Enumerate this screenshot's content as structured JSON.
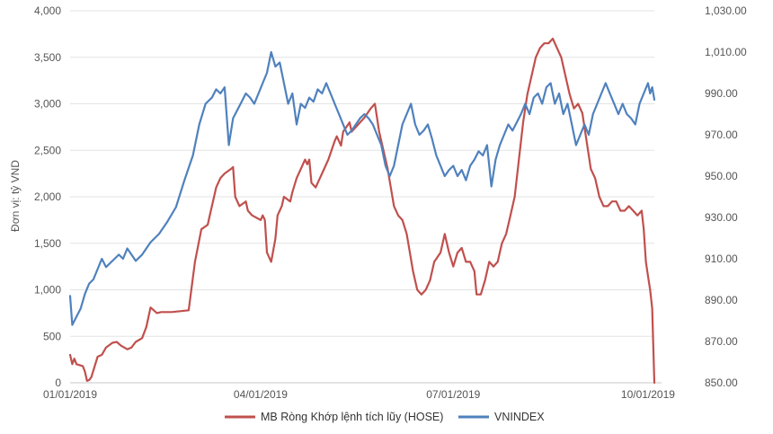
{
  "chart_data": {
    "type": "line",
    "title": "",
    "ylabel": "Đơn vị: tỷ VND",
    "x_ticks": [
      "01/01/2019",
      "04/01/2019",
      "07/01/2019",
      "10/01/2019"
    ],
    "x_range": [
      "2019-01-01",
      "2019-10-04"
    ],
    "y_left": {
      "range": [
        0,
        4000
      ],
      "ticks": [
        0,
        500,
        1000,
        1500,
        2000,
        2500,
        3000,
        3500,
        4000
      ],
      "tick_labels": [
        "0",
        "500",
        "1,000",
        "1,500",
        "2,000",
        "2,500",
        "3,000",
        "3,500",
        "4,000"
      ]
    },
    "y_right": {
      "range": [
        850,
        1030
      ],
      "ticks": [
        850,
        870,
        890,
        910,
        930,
        950,
        970,
        990,
        1010,
        1030
      ],
      "tick_labels": [
        "850.00",
        "870.00",
        "890.00",
        "910.00",
        "930.00",
        "950.00",
        "970.00",
        "990.00",
        "1,010.00",
        "1,030.00"
      ]
    },
    "grid": true,
    "legend_position": "bottom",
    "series": [
      {
        "name": "MB Ròng Khớp lệnh tích lũy (HOSE)",
        "axis": "left",
        "color": "#c0504d",
        "points": [
          [
            "2019-01-01",
            300
          ],
          [
            "2019-01-02",
            200
          ],
          [
            "2019-01-03",
            260
          ],
          [
            "2019-01-04",
            200
          ],
          [
            "2019-01-07",
            180
          ],
          [
            "2019-01-08",
            120
          ],
          [
            "2019-01-09",
            20
          ],
          [
            "2019-01-10",
            30
          ],
          [
            "2019-01-11",
            60
          ],
          [
            "2019-01-14",
            280
          ],
          [
            "2019-01-16",
            300
          ],
          [
            "2019-01-18",
            380
          ],
          [
            "2019-01-21",
            430
          ],
          [
            "2019-01-23",
            440
          ],
          [
            "2019-01-25",
            400
          ],
          [
            "2019-01-28",
            360
          ],
          [
            "2019-01-30",
            380
          ],
          [
            "2019-02-01",
            440
          ],
          [
            "2019-02-04",
            480
          ],
          [
            "2019-02-06",
            600
          ],
          [
            "2019-02-08",
            810
          ],
          [
            "2019-02-11",
            750
          ],
          [
            "2019-02-13",
            760
          ],
          [
            "2019-02-18",
            760
          ],
          [
            "2019-02-22",
            770
          ],
          [
            "2019-02-26",
            780
          ],
          [
            "2019-03-01",
            1300
          ],
          [
            "2019-03-04",
            1650
          ],
          [
            "2019-03-07",
            1700
          ],
          [
            "2019-03-08",
            1800
          ],
          [
            "2019-03-11",
            2100
          ],
          [
            "2019-03-13",
            2200
          ],
          [
            "2019-03-15",
            2250
          ],
          [
            "2019-03-18",
            2300
          ],
          [
            "2019-03-19",
            2320
          ],
          [
            "2019-03-20",
            2000
          ],
          [
            "2019-03-22",
            1900
          ],
          [
            "2019-03-25",
            1950
          ],
          [
            "2019-03-26",
            1850
          ],
          [
            "2019-03-28",
            1800
          ],
          [
            "2019-04-01",
            1750
          ],
          [
            "2019-04-02",
            1800
          ],
          [
            "2019-04-03",
            1750
          ],
          [
            "2019-04-04",
            1400
          ],
          [
            "2019-04-06",
            1300
          ],
          [
            "2019-04-08",
            1550
          ],
          [
            "2019-04-09",
            1800
          ],
          [
            "2019-04-11",
            1900
          ],
          [
            "2019-04-12",
            2000
          ],
          [
            "2019-04-15",
            1950
          ],
          [
            "2019-04-16",
            2050
          ],
          [
            "2019-04-18",
            2200
          ],
          [
            "2019-04-20",
            2300
          ],
          [
            "2019-04-22",
            2400
          ],
          [
            "2019-04-23",
            2350
          ],
          [
            "2019-04-24",
            2400
          ],
          [
            "2019-04-25",
            2150
          ],
          [
            "2019-04-27",
            2100
          ],
          [
            "2019-04-29",
            2200
          ],
          [
            "2019-05-01",
            2300
          ],
          [
            "2019-05-03",
            2400
          ],
          [
            "2019-05-06",
            2600
          ],
          [
            "2019-05-07",
            2650
          ],
          [
            "2019-05-09",
            2550
          ],
          [
            "2019-05-10",
            2700
          ],
          [
            "2019-05-13",
            2800
          ],
          [
            "2019-05-14",
            2700
          ],
          [
            "2019-05-16",
            2750
          ],
          [
            "2019-05-20",
            2850
          ],
          [
            "2019-05-23",
            2950
          ],
          [
            "2019-05-25",
            3000
          ],
          [
            "2019-05-27",
            2700
          ],
          [
            "2019-05-29",
            2500
          ],
          [
            "2019-05-31",
            2300
          ],
          [
            "2019-06-03",
            1900
          ],
          [
            "2019-06-05",
            1800
          ],
          [
            "2019-06-07",
            1750
          ],
          [
            "2019-06-09",
            1600
          ],
          [
            "2019-06-12",
            1200
          ],
          [
            "2019-06-14",
            1000
          ],
          [
            "2019-06-16",
            950
          ],
          [
            "2019-06-18",
            1000
          ],
          [
            "2019-06-20",
            1100
          ],
          [
            "2019-06-22",
            1300
          ],
          [
            "2019-06-25",
            1400
          ],
          [
            "2019-06-27",
            1600
          ],
          [
            "2019-06-29",
            1400
          ],
          [
            "2019-07-01",
            1250
          ],
          [
            "2019-07-03",
            1400
          ],
          [
            "2019-07-05",
            1450
          ],
          [
            "2019-07-07",
            1300
          ],
          [
            "2019-07-09",
            1300
          ],
          [
            "2019-07-11",
            1200
          ],
          [
            "2019-07-12",
            950
          ],
          [
            "2019-07-14",
            950
          ],
          [
            "2019-07-16",
            1100
          ],
          [
            "2019-07-18",
            1300
          ],
          [
            "2019-07-20",
            1250
          ],
          [
            "2019-07-22",
            1300
          ],
          [
            "2019-07-24",
            1500
          ],
          [
            "2019-07-26",
            1600
          ],
          [
            "2019-07-28",
            1800
          ],
          [
            "2019-07-30",
            2000
          ],
          [
            "2019-08-01",
            2400
          ],
          [
            "2019-08-03",
            2800
          ],
          [
            "2019-08-05",
            3100
          ],
          [
            "2019-08-07",
            3300
          ],
          [
            "2019-08-09",
            3500
          ],
          [
            "2019-08-11",
            3600
          ],
          [
            "2019-08-13",
            3650
          ],
          [
            "2019-08-15",
            3650
          ],
          [
            "2019-08-17",
            3700
          ],
          [
            "2019-08-19",
            3600
          ],
          [
            "2019-08-21",
            3500
          ],
          [
            "2019-08-23",
            3300
          ],
          [
            "2019-08-25",
            3100
          ],
          [
            "2019-08-27",
            2950
          ],
          [
            "2019-08-29",
            3000
          ],
          [
            "2019-08-31",
            2900
          ],
          [
            "2019-09-02",
            2600
          ],
          [
            "2019-09-04",
            2300
          ],
          [
            "2019-09-06",
            2200
          ],
          [
            "2019-09-08",
            2000
          ],
          [
            "2019-09-10",
            1900
          ],
          [
            "2019-09-12",
            1900
          ],
          [
            "2019-09-14",
            1950
          ],
          [
            "2019-09-16",
            1950
          ],
          [
            "2019-09-18",
            1850
          ],
          [
            "2019-09-20",
            1850
          ],
          [
            "2019-09-22",
            1900
          ],
          [
            "2019-09-24",
            1850
          ],
          [
            "2019-09-26",
            1800
          ],
          [
            "2019-09-28",
            1850
          ],
          [
            "2019-09-29",
            1650
          ],
          [
            "2019-09-30",
            1300
          ],
          [
            "2019-10-01",
            1150
          ],
          [
            "2019-10-02",
            1000
          ],
          [
            "2019-10-03",
            800
          ],
          [
            "2019-10-04",
            0
          ]
        ]
      },
      {
        "name": "VNINDEX",
        "axis": "right",
        "color": "#4f81bd",
        "points": [
          [
            "2019-01-01",
            892
          ],
          [
            "2019-01-02",
            878
          ],
          [
            "2019-01-04",
            882
          ],
          [
            "2019-01-06",
            886
          ],
          [
            "2019-01-08",
            893
          ],
          [
            "2019-01-10",
            898
          ],
          [
            "2019-01-12",
            900
          ],
          [
            "2019-01-14",
            905
          ],
          [
            "2019-01-16",
            910
          ],
          [
            "2019-01-18",
            906
          ],
          [
            "2019-01-20",
            908
          ],
          [
            "2019-01-22",
            910
          ],
          [
            "2019-01-24",
            912
          ],
          [
            "2019-01-26",
            910
          ],
          [
            "2019-01-28",
            915
          ],
          [
            "2019-01-30",
            912
          ],
          [
            "2019-02-01",
            909
          ],
          [
            "2019-02-04",
            912
          ],
          [
            "2019-02-08",
            918
          ],
          [
            "2019-02-12",
            922
          ],
          [
            "2019-02-16",
            928
          ],
          [
            "2019-02-20",
            935
          ],
          [
            "2019-02-24",
            948
          ],
          [
            "2019-02-28",
            960
          ],
          [
            "2019-03-03",
            975
          ],
          [
            "2019-03-06",
            985
          ],
          [
            "2019-03-09",
            988
          ],
          [
            "2019-03-11",
            992
          ],
          [
            "2019-03-13",
            990
          ],
          [
            "2019-03-15",
            993
          ],
          [
            "2019-03-17",
            965
          ],
          [
            "2019-03-19",
            978
          ],
          [
            "2019-03-21",
            982
          ],
          [
            "2019-03-23",
            986
          ],
          [
            "2019-03-25",
            990
          ],
          [
            "2019-03-27",
            988
          ],
          [
            "2019-03-29",
            985
          ],
          [
            "2019-03-31",
            990
          ],
          [
            "2019-04-02",
            995
          ],
          [
            "2019-04-04",
            1000
          ],
          [
            "2019-04-06",
            1010
          ],
          [
            "2019-04-08",
            1003
          ],
          [
            "2019-04-10",
            1005
          ],
          [
            "2019-04-12",
            995
          ],
          [
            "2019-04-14",
            985
          ],
          [
            "2019-04-16",
            990
          ],
          [
            "2019-04-18",
            975
          ],
          [
            "2019-04-20",
            985
          ],
          [
            "2019-04-22",
            983
          ],
          [
            "2019-04-24",
            988
          ],
          [
            "2019-04-26",
            986
          ],
          [
            "2019-04-28",
            992
          ],
          [
            "2019-04-30",
            990
          ],
          [
            "2019-05-02",
            995
          ],
          [
            "2019-05-04",
            990
          ],
          [
            "2019-05-06",
            985
          ],
          [
            "2019-05-08",
            980
          ],
          [
            "2019-05-10",
            975
          ],
          [
            "2019-05-12",
            970
          ],
          [
            "2019-05-14",
            972
          ],
          [
            "2019-05-16",
            975
          ],
          [
            "2019-05-18",
            978
          ],
          [
            "2019-05-20",
            980
          ],
          [
            "2019-05-22",
            978
          ],
          [
            "2019-05-24",
            975
          ],
          [
            "2019-05-26",
            970
          ],
          [
            "2019-05-28",
            965
          ],
          [
            "2019-05-30",
            955
          ],
          [
            "2019-06-01",
            950
          ],
          [
            "2019-06-03",
            955
          ],
          [
            "2019-06-05",
            965
          ],
          [
            "2019-06-07",
            975
          ],
          [
            "2019-06-09",
            980
          ],
          [
            "2019-06-11",
            985
          ],
          [
            "2019-06-13",
            975
          ],
          [
            "2019-06-15",
            970
          ],
          [
            "2019-06-17",
            972
          ],
          [
            "2019-06-19",
            975
          ],
          [
            "2019-06-21",
            968
          ],
          [
            "2019-06-23",
            960
          ],
          [
            "2019-06-25",
            955
          ],
          [
            "2019-06-27",
            950
          ],
          [
            "2019-06-29",
            953
          ],
          [
            "2019-07-01",
            955
          ],
          [
            "2019-07-03",
            950
          ],
          [
            "2019-07-05",
            953
          ],
          [
            "2019-07-07",
            948
          ],
          [
            "2019-07-09",
            955
          ],
          [
            "2019-07-11",
            958
          ],
          [
            "2019-07-13",
            962
          ],
          [
            "2019-07-15",
            960
          ],
          [
            "2019-07-17",
            965
          ],
          [
            "2019-07-19",
            945
          ],
          [
            "2019-07-21",
            958
          ],
          [
            "2019-07-23",
            965
          ],
          [
            "2019-07-25",
            970
          ],
          [
            "2019-07-27",
            975
          ],
          [
            "2019-07-29",
            972
          ],
          [
            "2019-07-31",
            976
          ],
          [
            "2019-08-02",
            980
          ],
          [
            "2019-08-04",
            985
          ],
          [
            "2019-08-06",
            980
          ],
          [
            "2019-08-08",
            988
          ],
          [
            "2019-08-10",
            990
          ],
          [
            "2019-08-12",
            985
          ],
          [
            "2019-08-14",
            993
          ],
          [
            "2019-08-16",
            995
          ],
          [
            "2019-08-18",
            985
          ],
          [
            "2019-08-20",
            990
          ],
          [
            "2019-08-22",
            980
          ],
          [
            "2019-08-24",
            985
          ],
          [
            "2019-08-26",
            975
          ],
          [
            "2019-08-28",
            965
          ],
          [
            "2019-08-30",
            970
          ],
          [
            "2019-09-01",
            975
          ],
          [
            "2019-09-03",
            970
          ],
          [
            "2019-09-05",
            980
          ],
          [
            "2019-09-07",
            985
          ],
          [
            "2019-09-09",
            990
          ],
          [
            "2019-09-11",
            995
          ],
          [
            "2019-09-13",
            990
          ],
          [
            "2019-09-15",
            985
          ],
          [
            "2019-09-17",
            980
          ],
          [
            "2019-09-19",
            985
          ],
          [
            "2019-09-21",
            980
          ],
          [
            "2019-09-23",
            978
          ],
          [
            "2019-09-25",
            975
          ],
          [
            "2019-09-27",
            985
          ],
          [
            "2019-09-29",
            990
          ],
          [
            "2019-10-01",
            995
          ],
          [
            "2019-10-02",
            990
          ],
          [
            "2019-10-03",
            993
          ],
          [
            "2019-10-04",
            987
          ]
        ]
      }
    ]
  }
}
